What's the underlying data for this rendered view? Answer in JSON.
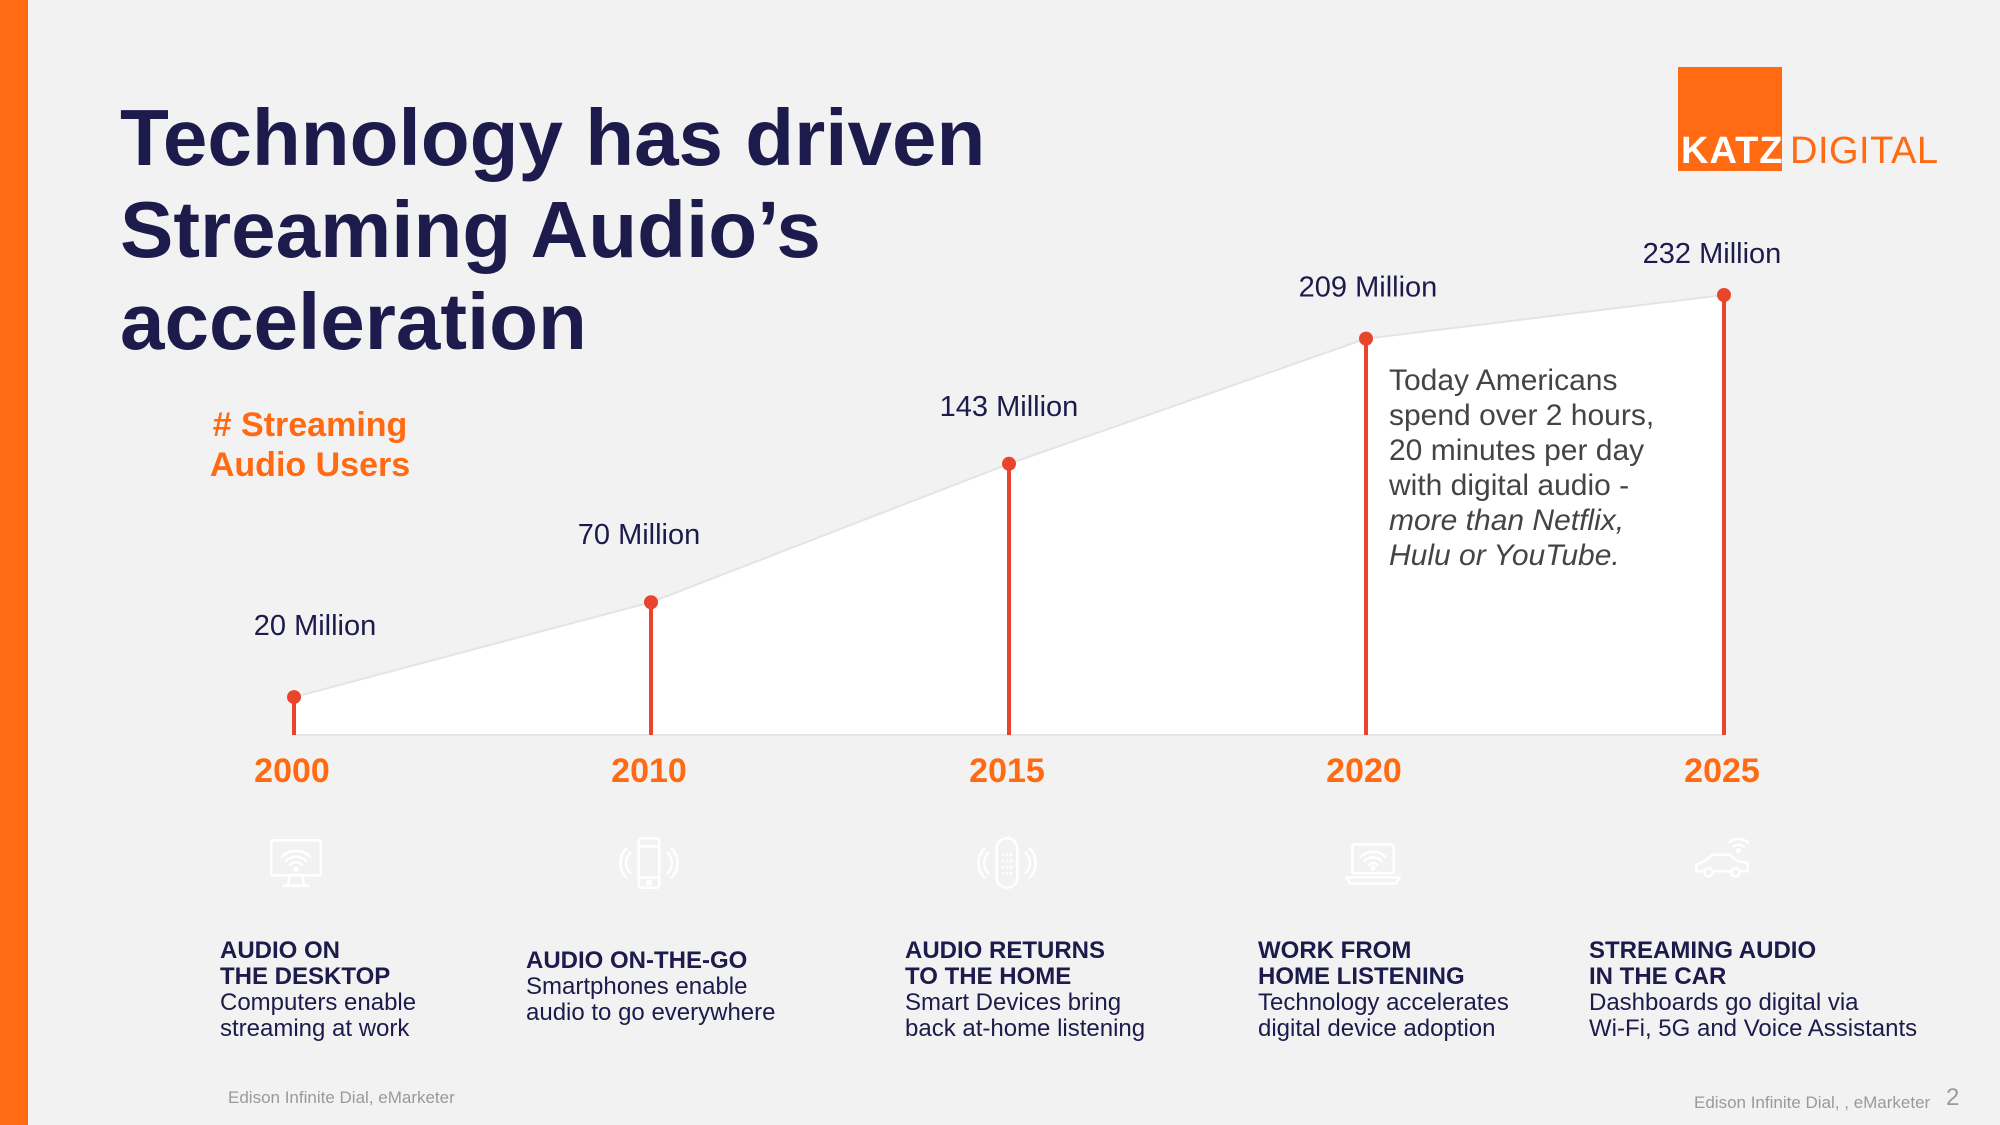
{
  "title_lines": [
    "Technology has driven",
    "Streaming Audio’s",
    "acceleration"
  ],
  "logo": {
    "katz": "KATZ",
    "digital": "DIGITAL"
  },
  "colors": {
    "accent": "#ff6a13",
    "line": "#e8452c",
    "navy": "#1c1b4b"
  },
  "chart_data": {
    "type": "area",
    "title": "# Streaming Audio Users",
    "title_lines": [
      "# Streaming",
      "Audio Users"
    ],
    "x": [
      "2000",
      "2010",
      "2015",
      "2020",
      "2025"
    ],
    "values": [
      20,
      70,
      143,
      209,
      232
    ],
    "unit": "Million",
    "value_labels": [
      "20 Million",
      "70 Million",
      "143 Million",
      "209 Million",
      "232 Million"
    ],
    "ylim": [
      0,
      232
    ],
    "grid": false
  },
  "callout": {
    "text_plain": "Today Americans spend over 2 hours, 20 minutes per day with digital audio - ",
    "text_italic": "more than Netflix, Hulu or YouTube."
  },
  "milestones": [
    {
      "icon": "desktop-wifi-icon",
      "color": "#f9a51b",
      "title_lines": [
        "AUDIO ON",
        "THE DESKTOP"
      ],
      "text_lines": [
        "Computers enable",
        "streaming at work"
      ]
    },
    {
      "icon": "smartphone-icon",
      "color": "#66bb7a",
      "title_lines": [
        "AUDIO ON-THE-GO"
      ],
      "text_lines": [
        "Smartphones enable",
        "audio to go everywhere"
      ]
    },
    {
      "icon": "smart-speaker-icon",
      "color": "#1c1b4b",
      "title_lines": [
        "AUDIO RETURNS",
        "TO THE HOME"
      ],
      "text_lines": [
        "Smart Devices bring",
        "back at-home listening"
      ]
    },
    {
      "icon": "laptop-wifi-icon",
      "color": "#e8452c",
      "title_lines": [
        "WORK FROM",
        "HOME LISTENING"
      ],
      "text_lines": [
        "Technology accelerates",
        "digital device adoption"
      ]
    },
    {
      "icon": "connected-car-icon",
      "color": "#2c64e0",
      "title_lines": [
        "STREAMING AUDIO",
        "IN THE CAR"
      ],
      "text_lines": [
        "Dashboards go digital via",
        "Wi-Fi, 5G and Voice Assistants"
      ]
    }
  ],
  "sources": {
    "left": "Edison Infinite Dial,  eMarketer",
    "right": "Edison Infinite Dial, , eMarketer"
  },
  "page_number": "2"
}
